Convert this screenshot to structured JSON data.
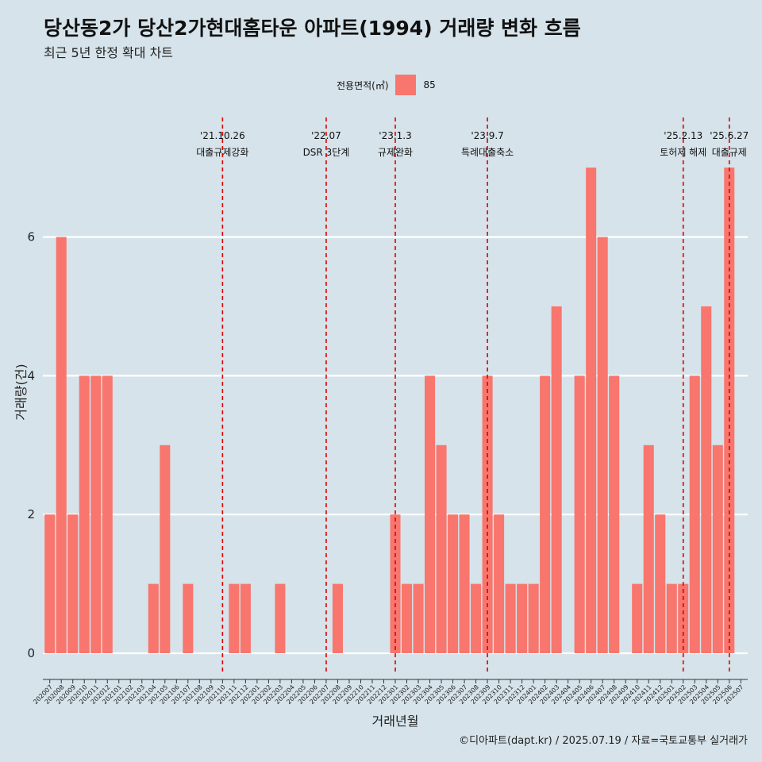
{
  "title": "당산동2가 당산2가현대홈타운 아파트(1994) 거래량 변화 흐름",
  "subtitle": "최근 5년 한정 확대 차트",
  "legend": {
    "title": "전용면적(㎡)",
    "label": "85"
  },
  "caption": "©디아파트(dapt.kr) / 2025.07.19 / 자료=국토교통부 실거래가",
  "chart_data": {
    "type": "bar",
    "title": "당산동2가 당산2가현대홈타운 아파트(1994) 거래량 변화 흐름",
    "subtitle": "최근 5년 한정 확대 차트",
    "xlabel": "거래년월",
    "ylabel": "거래량(건)",
    "ylim": [
      -0.3,
      7.9
    ],
    "yticks": [
      0,
      2,
      4,
      6
    ],
    "grid": true,
    "legend_position": "top",
    "bar_color": "#f8766d",
    "vline_color": "#e00000",
    "categories": [
      "202007",
      "202008",
      "202009",
      "202010",
      "202011",
      "202012",
      "202101",
      "202102",
      "202103",
      "202104",
      "202105",
      "202106",
      "202107",
      "202108",
      "202109",
      "202110",
      "202111",
      "202112",
      "202201",
      "202202",
      "202203",
      "202204",
      "202205",
      "202206",
      "202207",
      "202208",
      "202209",
      "202210",
      "202211",
      "202212",
      "202301",
      "202302",
      "202303",
      "202304",
      "202305",
      "202306",
      "202307",
      "202308",
      "202309",
      "202310",
      "202311",
      "202312",
      "202401",
      "202402",
      "202403",
      "202404",
      "202405",
      "202406",
      "202407",
      "202408",
      "202409",
      "202410",
      "202411",
      "202412",
      "202501",
      "202502",
      "202503",
      "202504",
      "202505",
      "202506",
      "202507"
    ],
    "series": [
      {
        "name": "85",
        "values": [
          2,
          6,
          2,
          4,
          4,
          4,
          0,
          0,
          0,
          1,
          3,
          0,
          1,
          0,
          0,
          0,
          1,
          1,
          0,
          0,
          1,
          0,
          0,
          0,
          0,
          1,
          0,
          0,
          0,
          0,
          2,
          1,
          1,
          4,
          3,
          2,
          2,
          1,
          4,
          2,
          1,
          1,
          1,
          4,
          5,
          0,
          4,
          7,
          6,
          4,
          0,
          1,
          3,
          2,
          1,
          1,
          4,
          5,
          3,
          7,
          0
        ]
      }
    ],
    "annotations": [
      {
        "date": "'21.10.26",
        "label": "대출규제강화",
        "x": "202110"
      },
      {
        "date": "'22.07",
        "label": "DSR 3단계",
        "x": "202207"
      },
      {
        "date": "'23.1.3",
        "label": "규제완화",
        "x": "202301"
      },
      {
        "date": "'23.9.7",
        "label": "특례대출축소",
        "x": "202309"
      },
      {
        "date": "'25.2.13",
        "label": "토허제 해제",
        "x": "202502"
      },
      {
        "date": "'25.6.27",
        "label": "대출규제",
        "x": "202506"
      }
    ]
  }
}
